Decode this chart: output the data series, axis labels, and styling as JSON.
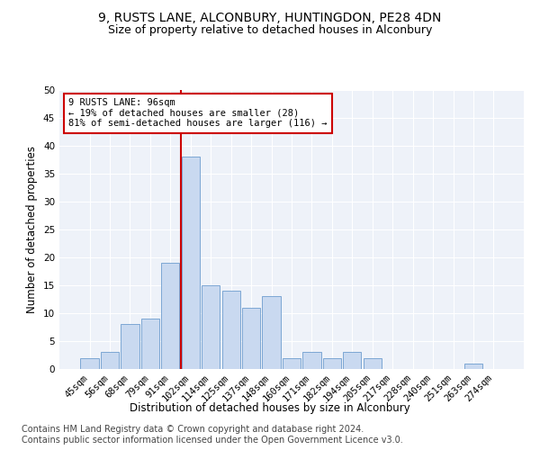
{
  "title1": "9, RUSTS LANE, ALCONBURY, HUNTINGDON, PE28 4DN",
  "title2": "Size of property relative to detached houses in Alconbury",
  "xlabel": "Distribution of detached houses by size in Alconbury",
  "ylabel": "Number of detached properties",
  "categories": [
    "45sqm",
    "56sqm",
    "68sqm",
    "79sqm",
    "91sqm",
    "102sqm",
    "114sqm",
    "125sqm",
    "137sqm",
    "148sqm",
    "160sqm",
    "171sqm",
    "182sqm",
    "194sqm",
    "205sqm",
    "217sqm",
    "228sqm",
    "240sqm",
    "251sqm",
    "263sqm",
    "274sqm"
  ],
  "values": [
    2,
    3,
    8,
    9,
    19,
    38,
    15,
    14,
    11,
    13,
    2,
    3,
    2,
    3,
    2,
    0,
    0,
    0,
    0,
    1,
    0
  ],
  "bar_color": "#c9d9f0",
  "bar_edge_color": "#7da7d4",
  "annotation_text": "9 RUSTS LANE: 96sqm\n← 19% of detached houses are smaller (28)\n81% of semi-detached houses are larger (116) →",
  "annotation_box_color": "#ffffff",
  "annotation_box_edge_color": "#cc0000",
  "vline_color": "#cc0000",
  "vline_x_index": 4.5,
  "ylim": [
    0,
    50
  ],
  "yticks": [
    0,
    5,
    10,
    15,
    20,
    25,
    30,
    35,
    40,
    45,
    50
  ],
  "background_color": "#eef2f9",
  "footer1": "Contains HM Land Registry data © Crown copyright and database right 2024.",
  "footer2": "Contains public sector information licensed under the Open Government Licence v3.0.",
  "title1_fontsize": 10,
  "title2_fontsize": 9,
  "axis_label_fontsize": 8.5,
  "tick_fontsize": 7.5,
  "footer_fontsize": 7
}
